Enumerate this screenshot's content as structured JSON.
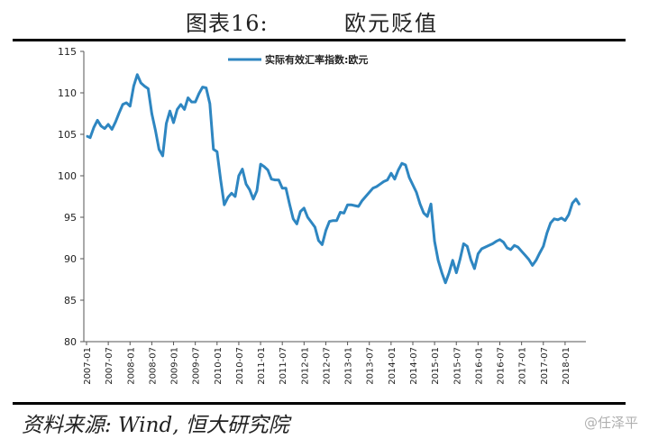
{
  "header": {
    "figure_label": "图表16:",
    "figure_name": "欧元贬值"
  },
  "source": "资料来源: Wind, 恒大研究院",
  "watermark": "@任泽平",
  "chart_data": {
    "type": "line",
    "title": "",
    "xlabel": "",
    "ylabel": "",
    "ylim": [
      80,
      115
    ],
    "yticks": [
      80,
      85,
      90,
      95,
      100,
      105,
      110,
      115
    ],
    "grid": false,
    "legend": {
      "position": "top-center"
    },
    "line_color": "#2e86c1",
    "x_ticks": [
      "2007-01",
      "2007-07",
      "2008-01",
      "2008-07",
      "2009-01",
      "2009-07",
      "2010-01",
      "2010-07",
      "2011-01",
      "2011-07",
      "2012-01",
      "2012-07",
      "2013-01",
      "2013-07",
      "2014-01",
      "2014-07",
      "2015-01",
      "2015-07",
      "2016-01",
      "2016-07",
      "2017-01",
      "2017-07",
      "2018-01"
    ],
    "series": [
      {
        "name": "实际有效汇率指数:欧元",
        "x": [
          "2007-01",
          "2007-02",
          "2007-03",
          "2007-04",
          "2007-05",
          "2007-06",
          "2007-07",
          "2007-08",
          "2007-09",
          "2007-10",
          "2007-11",
          "2007-12",
          "2008-01",
          "2008-02",
          "2008-03",
          "2008-04",
          "2008-05",
          "2008-06",
          "2008-07",
          "2008-08",
          "2008-09",
          "2008-10",
          "2008-11",
          "2008-12",
          "2009-01",
          "2009-02",
          "2009-03",
          "2009-04",
          "2009-05",
          "2009-06",
          "2009-07",
          "2009-08",
          "2009-09",
          "2009-10",
          "2009-11",
          "2009-12",
          "2010-01",
          "2010-02",
          "2010-03",
          "2010-04",
          "2010-05",
          "2010-06",
          "2010-07",
          "2010-08",
          "2010-09",
          "2010-10",
          "2010-11",
          "2010-12",
          "2011-01",
          "2011-02",
          "2011-03",
          "2011-04",
          "2011-05",
          "2011-06",
          "2011-07",
          "2011-08",
          "2011-09",
          "2011-10",
          "2011-11",
          "2011-12",
          "2012-01",
          "2012-02",
          "2012-03",
          "2012-04",
          "2012-05",
          "2012-06",
          "2012-07",
          "2012-08",
          "2012-09",
          "2012-10",
          "2012-11",
          "2012-12",
          "2013-01",
          "2013-02",
          "2013-03",
          "2013-04",
          "2013-05",
          "2013-06",
          "2013-07",
          "2013-08",
          "2013-09",
          "2013-10",
          "2013-11",
          "2013-12",
          "2014-01",
          "2014-02",
          "2014-03",
          "2014-04",
          "2014-05",
          "2014-06",
          "2014-07",
          "2014-08",
          "2014-09",
          "2014-10",
          "2014-11",
          "2014-12",
          "2015-01",
          "2015-02",
          "2015-03",
          "2015-04",
          "2015-05",
          "2015-06",
          "2015-07",
          "2015-08",
          "2015-09",
          "2015-10",
          "2015-11",
          "2015-12",
          "2016-01",
          "2016-02",
          "2016-03",
          "2016-04",
          "2016-05",
          "2016-06",
          "2016-07",
          "2016-08",
          "2016-09",
          "2016-10",
          "2016-11",
          "2016-12",
          "2017-01",
          "2017-02",
          "2017-03",
          "2017-04",
          "2017-05",
          "2017-06",
          "2017-07",
          "2017-08",
          "2017-09",
          "2017-10",
          "2017-11",
          "2017-12",
          "2018-01",
          "2018-02",
          "2018-03",
          "2018-04",
          "2018-05"
        ],
        "values": [
          104.8,
          104.6,
          105.8,
          106.7,
          106.0,
          105.7,
          106.2,
          105.6,
          106.5,
          107.6,
          108.6,
          108.8,
          108.4,
          110.8,
          112.2,
          111.2,
          110.8,
          110.5,
          107.5,
          105.5,
          103.2,
          102.4,
          106.3,
          107.8,
          106.4,
          108.0,
          108.6,
          108.0,
          109.4,
          108.9,
          108.9,
          109.9,
          110.7,
          110.6,
          108.7,
          103.2,
          102.9,
          99.5,
          96.5,
          97.4,
          97.9,
          97.5,
          100.0,
          100.8,
          99.0,
          98.3,
          97.2,
          98.2,
          101.4,
          101.1,
          100.7,
          99.6,
          99.5,
          99.5,
          98.5,
          98.5,
          96.6,
          94.8,
          94.2,
          95.7,
          96.1,
          95.0,
          94.4,
          93.8,
          92.2,
          91.7,
          93.4,
          94.5,
          94.6,
          94.6,
          95.6,
          95.5,
          96.5,
          96.5,
          96.4,
          96.3,
          97.0,
          97.5,
          98.0,
          98.5,
          98.7,
          99.0,
          99.3,
          99.5,
          100.3,
          99.6,
          100.7,
          101.5,
          101.3,
          99.8,
          98.9,
          98.0,
          96.6,
          95.5,
          95.1,
          96.6,
          92.1,
          89.8,
          88.3,
          87.1,
          88.3,
          89.8,
          88.3,
          89.9,
          91.8,
          91.5,
          89.9,
          88.8,
          90.6,
          91.2,
          91.4,
          91.6,
          91.8,
          92.1,
          92.3,
          92.0,
          91.3,
          91.1,
          91.6,
          91.4,
          90.9,
          90.4,
          89.9,
          89.2,
          89.8,
          90.7,
          91.5,
          93.1,
          94.3,
          94.8,
          94.7,
          94.9,
          94.6,
          95.3,
          96.7,
          97.2,
          96.5
        ]
      }
    ]
  }
}
